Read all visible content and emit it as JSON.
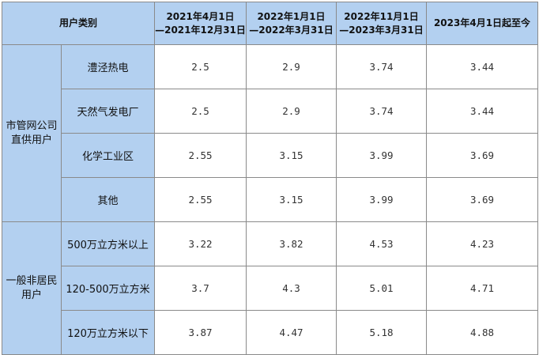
{
  "header": {
    "category": "用户类别",
    "periods": [
      {
        "line1": "2021年4月1日",
        "line2": "—2021年12月31日"
      },
      {
        "line1": "2022年1月1日",
        "line2": "—2022年3月31日"
      },
      {
        "line1": "2022年11月1日",
        "line2": "—2023年3月31日"
      },
      {
        "line1": "2023年4月1日起至今",
        "line2": ""
      }
    ]
  },
  "groups": [
    {
      "name": "市管网公司直供用户",
      "rows": [
        {
          "label": "澧泾热电",
          "values": [
            "2.5",
            "2.9",
            "3.74",
            "3.44"
          ]
        },
        {
          "label": "天然气发电厂",
          "values": [
            "2.5",
            "2.9",
            "3.74",
            "3.44"
          ]
        },
        {
          "label": "化学工业区",
          "values": [
            "2.55",
            "3.15",
            "3.99",
            "3.69"
          ]
        },
        {
          "label": "其他",
          "values": [
            "2.55",
            "3.15",
            "3.99",
            "3.69"
          ]
        }
      ]
    },
    {
      "name": "一般非居民用户",
      "rows": [
        {
          "label": "500万立方米以上",
          "values": [
            "3.22",
            "3.82",
            "4.53",
            "4.23"
          ]
        },
        {
          "label": "120-500万立方米",
          "values": [
            "3.7",
            "4.3",
            "5.01",
            "4.71"
          ]
        },
        {
          "label": "120万立方米以下",
          "values": [
            "3.87",
            "4.47",
            "5.18",
            "4.88"
          ]
        }
      ]
    }
  ]
}
